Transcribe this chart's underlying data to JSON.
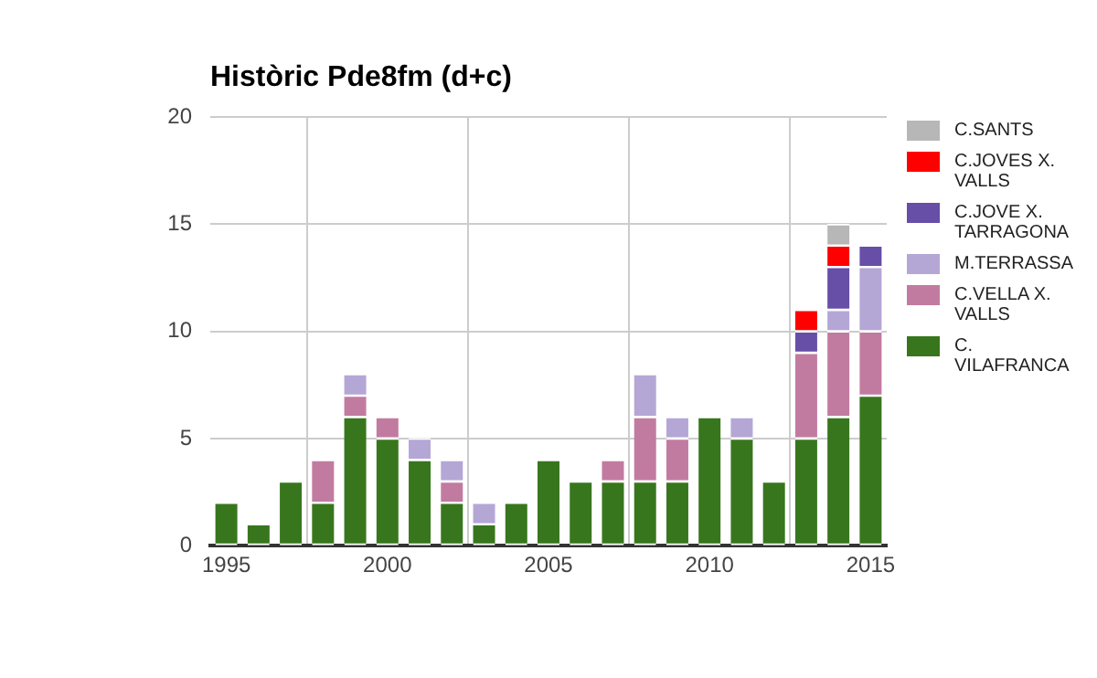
{
  "chart_data": {
    "type": "bar",
    "title": "Històric Pde8fm (d+c)",
    "stacked": true,
    "x": [
      1995,
      1996,
      1997,
      1998,
      1999,
      2000,
      2001,
      2002,
      2003,
      2004,
      2005,
      2006,
      2007,
      2008,
      2009,
      2010,
      2011,
      2012,
      2013,
      2014,
      2015
    ],
    "xlim": [
      1994.5,
      2015.5
    ],
    "xticks": [
      1995,
      2000,
      2005,
      2010,
      2015
    ],
    "ylim": [
      0,
      20
    ],
    "yticks": [
      0,
      5,
      10,
      15,
      20
    ],
    "grid": true,
    "legend": "right",
    "series": [
      {
        "name": "C. VILAFRANCA",
        "color": "#38761d",
        "values": [
          2,
          1,
          3,
          2,
          6,
          5,
          4,
          2,
          1,
          2,
          4,
          3,
          3,
          3,
          3,
          6,
          5,
          3,
          5,
          6,
          7
        ]
      },
      {
        "name": "C.VELLA X. VALLS",
        "color": "#c27ba0",
        "values": [
          null,
          null,
          null,
          2,
          1,
          1,
          null,
          1,
          null,
          null,
          null,
          null,
          1,
          3,
          2,
          null,
          null,
          null,
          4,
          4,
          3
        ]
      },
      {
        "name": "M.TERRASSA",
        "color": "#b4a7d6",
        "values": [
          null,
          null,
          null,
          null,
          1,
          null,
          1,
          1,
          1,
          null,
          null,
          null,
          null,
          2,
          1,
          null,
          1,
          null,
          null,
          1,
          3
        ]
      },
      {
        "name": "C.JOVE X. TARRAGONA",
        "color": "#674ea7",
        "values": [
          null,
          null,
          null,
          null,
          null,
          null,
          null,
          null,
          null,
          null,
          null,
          null,
          null,
          null,
          null,
          null,
          null,
          null,
          1,
          2,
          1
        ]
      },
      {
        "name": "C.JOVES X. VALLS",
        "color": "#ff0000",
        "values": [
          null,
          null,
          null,
          null,
          null,
          null,
          null,
          null,
          null,
          null,
          null,
          null,
          null,
          null,
          null,
          null,
          null,
          null,
          1,
          1,
          null
        ]
      },
      {
        "name": "C.SANTS",
        "color": "#b7b7b7",
        "values": [
          null,
          null,
          null,
          null,
          null,
          null,
          null,
          null,
          null,
          null,
          null,
          null,
          null,
          null,
          null,
          null,
          null,
          null,
          null,
          1,
          null
        ]
      }
    ]
  }
}
